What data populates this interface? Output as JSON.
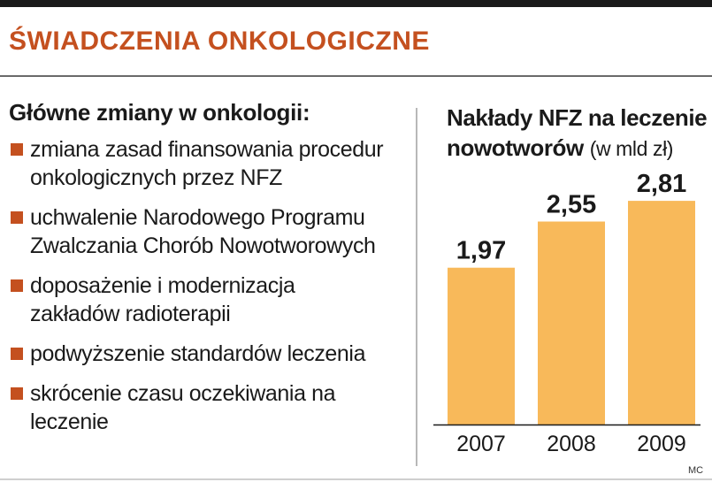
{
  "header": {
    "title": "ŚWIADCZENIA ONKOLOGICZNE"
  },
  "changes": {
    "heading": "Główne zmiany w onkologii:",
    "items": [
      {
        "line1": "zmiana zasad finansowania procedur",
        "line2": "onkologicznych przez NFZ"
      },
      {
        "line1": "uchwalenie Narodowego Programu",
        "line2": "Zwalczania Chorób Nowotworowych"
      },
      {
        "line1": "doposażenie i modernizacja",
        "line2": "zakładów radioterapii"
      },
      {
        "line1": "podwyższenie standardów leczenia",
        "line2": ""
      },
      {
        "line1": "skrócenie czasu oczekiwania na",
        "line2": "leczenie"
      }
    ]
  },
  "chart_data": {
    "type": "bar",
    "title_line1": "Nakłady NFZ na leczenie",
    "title_line2": "nowotworów",
    "unit": "(w mld zł)",
    "categories": [
      "2007",
      "2008",
      "2009"
    ],
    "values": [
      1.97,
      2.55,
      2.81
    ],
    "value_labels": [
      "1,97",
      "2,55",
      "2,81"
    ],
    "ylim": [
      0,
      3.0
    ],
    "grid": false,
    "bar_color": "#f8b95a"
  },
  "credit": "MC",
  "colors": {
    "accent": "#c4501f",
    "text": "#1a1a1a"
  }
}
